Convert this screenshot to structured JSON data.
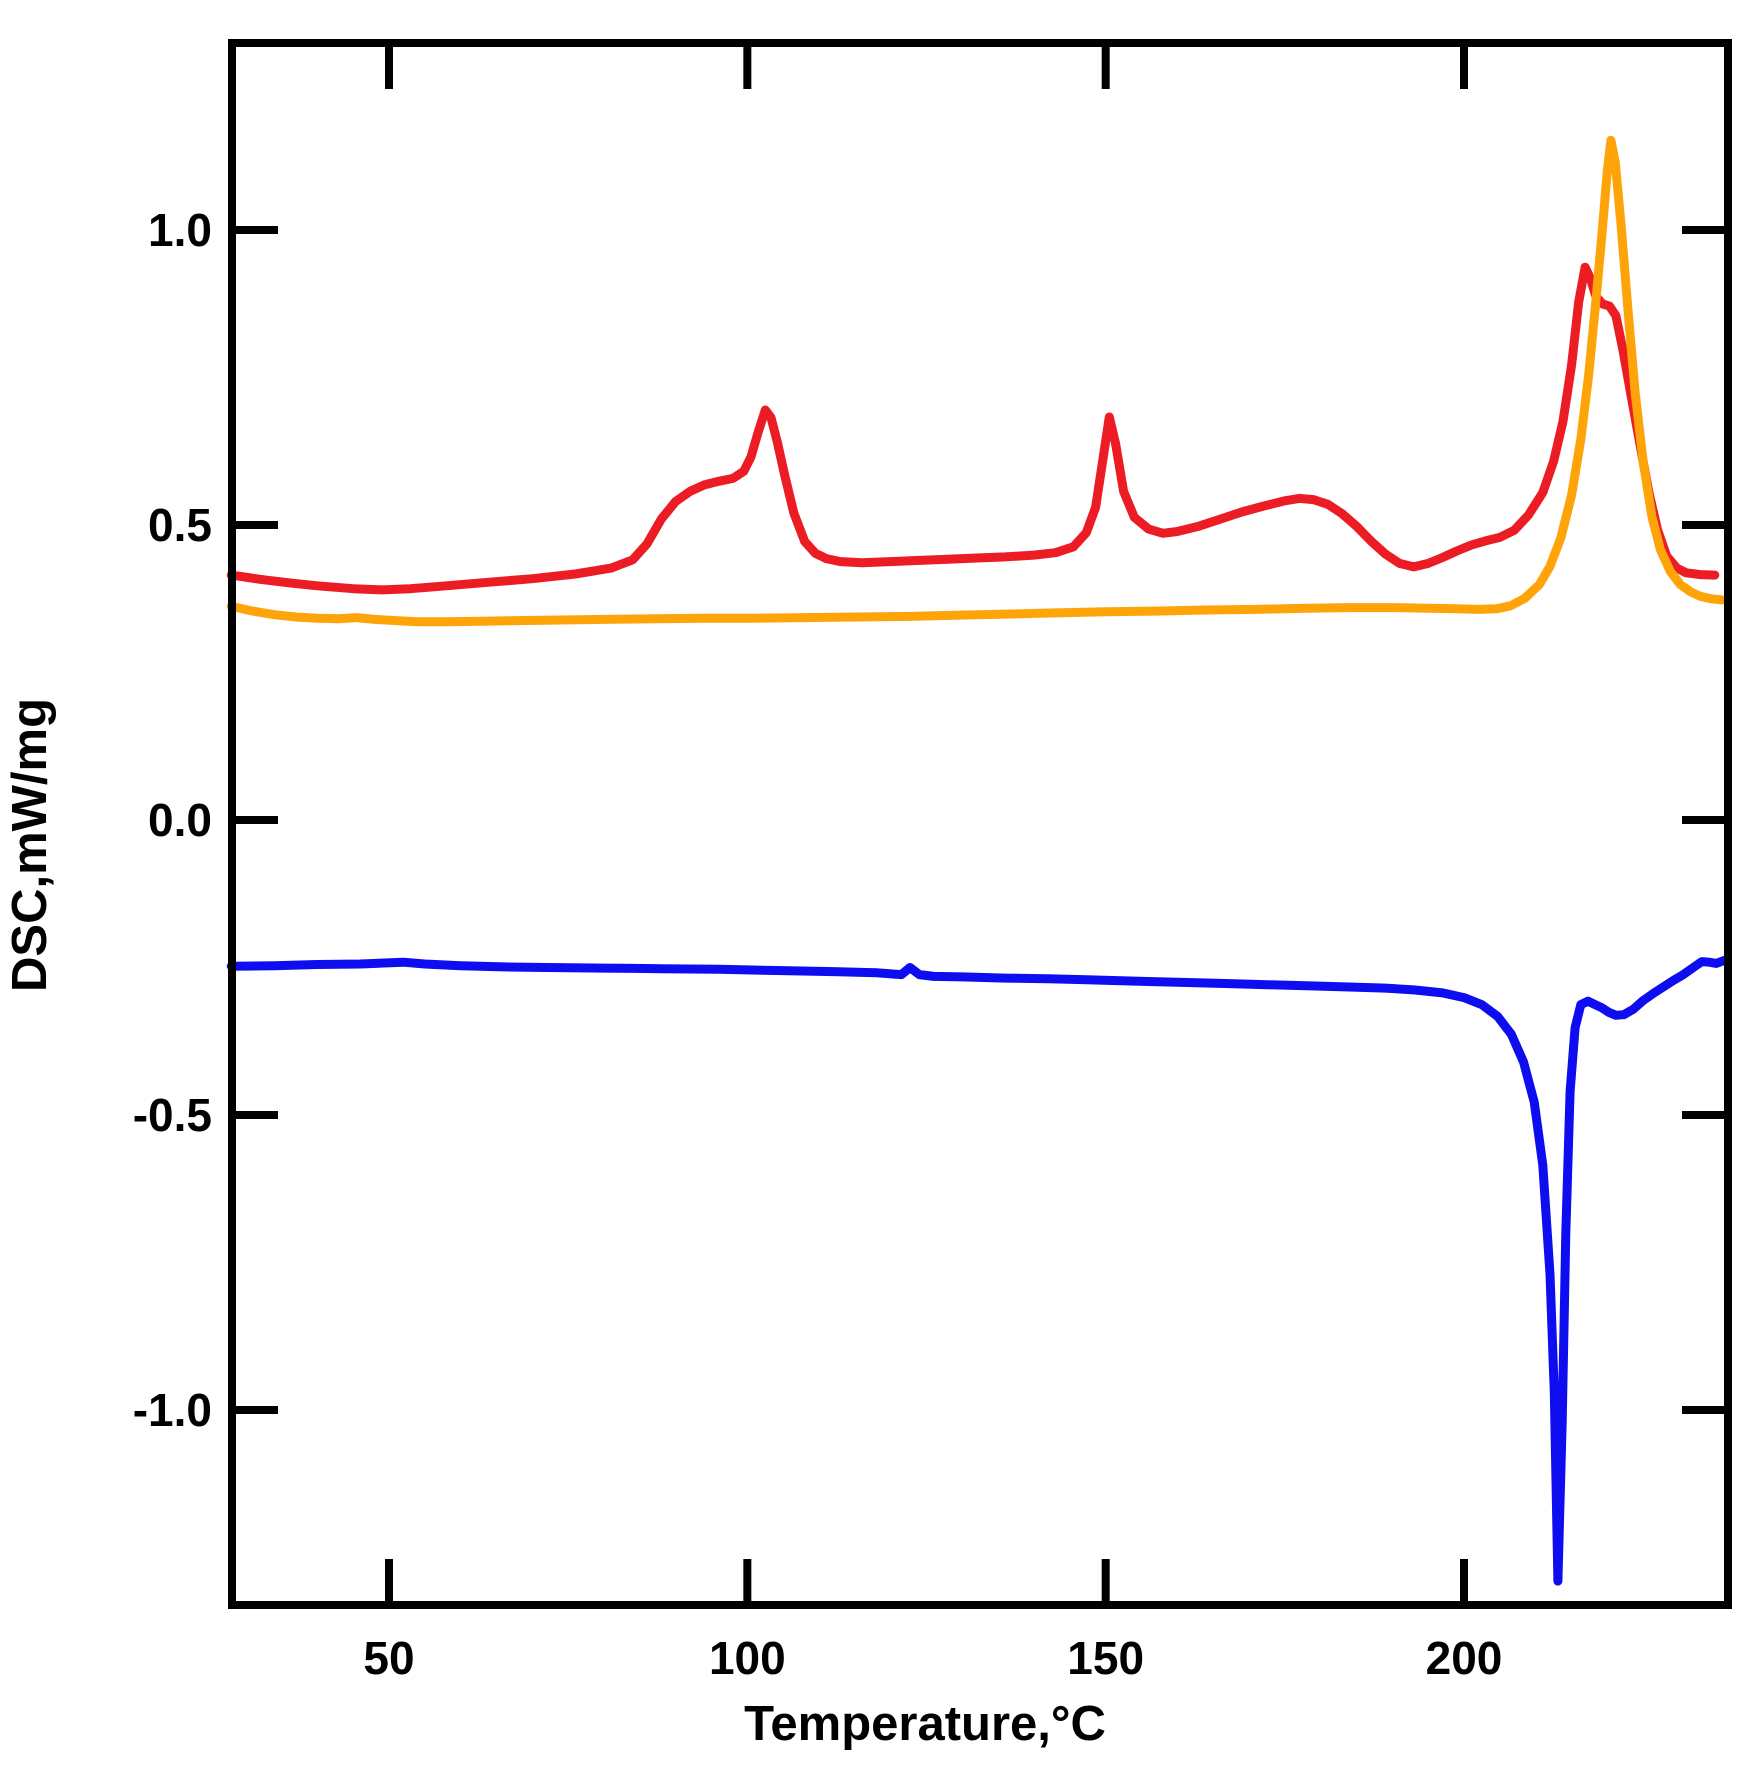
{
  "figure": {
    "background": "#ffffff",
    "axis_color": "#000000"
  },
  "chart_data": {
    "type": "line",
    "title": "",
    "xlabel": "Temperature,°C",
    "ylabel": "DSC,mW/mg",
    "xlim": [
      28,
      237
    ],
    "ylim": [
      -1.33,
      1.32
    ],
    "grid": false,
    "legend": "none",
    "x_ticks": [
      {
        "label": "50",
        "value": 50
      },
      {
        "label": "100",
        "value": 100
      },
      {
        "label": "150",
        "value": 150
      },
      {
        "label": "200",
        "value": 200
      }
    ],
    "y_ticks": [
      {
        "label": "1.0",
        "value": 1.0
      },
      {
        "label": "0.5",
        "value": 0.5
      },
      {
        "label": "0.0",
        "value": 0.0
      },
      {
        "label": "-0.5",
        "value": -0.5
      },
      {
        "label": "-1.0",
        "value": -1.0
      }
    ],
    "series": [
      {
        "name": "dsc-curve-blue",
        "color": "#0d0df0",
        "stroke_width": 9,
        "points": [
          [
            28,
            -0.248
          ],
          [
            34,
            -0.247
          ],
          [
            40,
            -0.245
          ],
          [
            46,
            -0.244
          ],
          [
            52,
            -0.241
          ],
          [
            55,
            -0.244
          ],
          [
            60,
            -0.247
          ],
          [
            66,
            -0.249
          ],
          [
            72,
            -0.25
          ],
          [
            80,
            -0.251
          ],
          [
            88,
            -0.252
          ],
          [
            96,
            -0.253
          ],
          [
            104,
            -0.255
          ],
          [
            112,
            -0.257
          ],
          [
            118,
            -0.259
          ],
          [
            121.5,
            -0.262
          ],
          [
            122.7,
            -0.25
          ],
          [
            124,
            -0.262
          ],
          [
            126,
            -0.265
          ],
          [
            130,
            -0.266
          ],
          [
            136,
            -0.268
          ],
          [
            142,
            -0.269
          ],
          [
            148,
            -0.271
          ],
          [
            154,
            -0.273
          ],
          [
            160,
            -0.275
          ],
          [
            166,
            -0.277
          ],
          [
            172,
            -0.279
          ],
          [
            178,
            -0.281
          ],
          [
            184,
            -0.283
          ],
          [
            189,
            -0.285
          ],
          [
            193,
            -0.288
          ],
          [
            197,
            -0.293
          ],
          [
            200,
            -0.301
          ],
          [
            202.5,
            -0.313
          ],
          [
            204.7,
            -0.333
          ],
          [
            206.6,
            -0.363
          ],
          [
            208.3,
            -0.41
          ],
          [
            209.8,
            -0.478
          ],
          [
            211,
            -0.585
          ],
          [
            212,
            -0.77
          ],
          [
            212.6,
            -0.97
          ],
          [
            213.1,
            -1.29
          ],
          [
            213.7,
            -1.02
          ],
          [
            214.2,
            -0.7
          ],
          [
            214.8,
            -0.46
          ],
          [
            215.5,
            -0.352
          ],
          [
            216.3,
            -0.313
          ],
          [
            217.3,
            -0.307
          ],
          [
            218.3,
            -0.313
          ],
          [
            219.2,
            -0.318
          ],
          [
            220.2,
            -0.326
          ],
          [
            221.2,
            -0.331
          ],
          [
            222.3,
            -0.33
          ],
          [
            223.6,
            -0.321
          ],
          [
            225,
            -0.306
          ],
          [
            226.4,
            -0.294
          ],
          [
            227.8,
            -0.283
          ],
          [
            229.2,
            -0.272
          ],
          [
            230.6,
            -0.262
          ],
          [
            232,
            -0.25
          ],
          [
            233.2,
            -0.24
          ],
          [
            234.2,
            -0.241
          ],
          [
            235.2,
            -0.243
          ],
          [
            236.3,
            -0.238
          ]
        ]
      },
      {
        "name": "dsc-curve-red",
        "color": "#ec1c24",
        "stroke_width": 9,
        "points": [
          [
            28,
            0.415
          ],
          [
            32,
            0.408
          ],
          [
            36,
            0.402
          ],
          [
            40,
            0.397
          ],
          [
            45,
            0.392
          ],
          [
            49,
            0.39
          ],
          [
            53,
            0.392
          ],
          [
            58,
            0.397
          ],
          [
            64,
            0.403
          ],
          [
            70,
            0.409
          ],
          [
            76,
            0.417
          ],
          [
            81,
            0.427
          ],
          [
            84,
            0.441
          ],
          [
            86,
            0.468
          ],
          [
            88,
            0.51
          ],
          [
            90,
            0.54
          ],
          [
            92,
            0.557
          ],
          [
            94,
            0.568
          ],
          [
            96,
            0.574
          ],
          [
            98,
            0.579
          ],
          [
            99.5,
            0.591
          ],
          [
            100.5,
            0.615
          ],
          [
            101.5,
            0.657
          ],
          [
            102.5,
            0.695
          ],
          [
            103.3,
            0.682
          ],
          [
            104.2,
            0.64
          ],
          [
            105.2,
            0.585
          ],
          [
            106.5,
            0.52
          ],
          [
            108,
            0.472
          ],
          [
            109.5,
            0.452
          ],
          [
            111,
            0.443
          ],
          [
            113,
            0.438
          ],
          [
            116,
            0.436
          ],
          [
            120,
            0.438
          ],
          [
            124,
            0.44
          ],
          [
            128,
            0.442
          ],
          [
            132,
            0.444
          ],
          [
            136,
            0.446
          ],
          [
            140,
            0.449
          ],
          [
            143,
            0.453
          ],
          [
            145.5,
            0.463
          ],
          [
            147.3,
            0.487
          ],
          [
            148.6,
            0.53
          ],
          [
            149.6,
            0.61
          ],
          [
            150.5,
            0.683
          ],
          [
            151.4,
            0.637
          ],
          [
            152.5,
            0.557
          ],
          [
            154,
            0.513
          ],
          [
            156,
            0.493
          ],
          [
            158,
            0.486
          ],
          [
            160,
            0.489
          ],
          [
            163,
            0.498
          ],
          [
            166,
            0.51
          ],
          [
            169,
            0.522
          ],
          [
            172,
            0.532
          ],
          [
            175,
            0.541
          ],
          [
            177,
            0.545
          ],
          [
            179,
            0.543
          ],
          [
            181,
            0.535
          ],
          [
            183,
            0.519
          ],
          [
            185,
            0.498
          ],
          [
            187,
            0.473
          ],
          [
            189,
            0.451
          ],
          [
            191,
            0.435
          ],
          [
            193,
            0.429
          ],
          [
            195,
            0.435
          ],
          [
            197,
            0.445
          ],
          [
            199,
            0.456
          ],
          [
            201,
            0.466
          ],
          [
            203,
            0.473
          ],
          [
            205,
            0.479
          ],
          [
            207,
            0.491
          ],
          [
            209,
            0.517
          ],
          [
            211,
            0.555
          ],
          [
            212.5,
            0.608
          ],
          [
            213.8,
            0.675
          ],
          [
            215,
            0.77
          ],
          [
            216,
            0.878
          ],
          [
            216.9,
            0.937
          ],
          [
            217.6,
            0.919
          ],
          [
            218.4,
            0.888
          ],
          [
            219.3,
            0.875
          ],
          [
            220.3,
            0.871
          ],
          [
            221.2,
            0.855
          ],
          [
            222.2,
            0.795
          ],
          [
            223.3,
            0.72
          ],
          [
            224.5,
            0.64
          ],
          [
            225.8,
            0.555
          ],
          [
            227,
            0.492
          ],
          [
            228.3,
            0.447
          ],
          [
            229.7,
            0.427
          ],
          [
            231,
            0.419
          ],
          [
            233,
            0.416
          ],
          [
            235,
            0.415
          ]
        ]
      },
      {
        "name": "dsc-curve-orange",
        "color": "#ffa408",
        "stroke_width": 9,
        "points": [
          [
            28,
            0.362
          ],
          [
            31,
            0.354
          ],
          [
            34,
            0.348
          ],
          [
            37,
            0.344
          ],
          [
            40,
            0.342
          ],
          [
            43,
            0.341
          ],
          [
            45.5,
            0.343
          ],
          [
            48,
            0.34
          ],
          [
            51,
            0.338
          ],
          [
            54,
            0.336
          ],
          [
            58,
            0.336
          ],
          [
            63,
            0.337
          ],
          [
            68,
            0.338
          ],
          [
            74,
            0.339
          ],
          [
            80,
            0.34
          ],
          [
            87,
            0.341
          ],
          [
            94,
            0.342
          ],
          [
            101,
            0.342
          ],
          [
            108,
            0.343
          ],
          [
            115,
            0.344
          ],
          [
            122,
            0.345
          ],
          [
            129,
            0.347
          ],
          [
            136,
            0.349
          ],
          [
            143,
            0.351
          ],
          [
            150,
            0.353
          ],
          [
            157,
            0.354
          ],
          [
            164,
            0.356
          ],
          [
            171,
            0.357
          ],
          [
            178,
            0.359
          ],
          [
            184,
            0.36
          ],
          [
            190,
            0.36
          ],
          [
            195,
            0.359
          ],
          [
            199,
            0.358
          ],
          [
            202,
            0.357
          ],
          [
            204.5,
            0.358
          ],
          [
            206.5,
            0.363
          ],
          [
            208.5,
            0.376
          ],
          [
            210.5,
            0.399
          ],
          [
            212,
            0.43
          ],
          [
            213.5,
            0.478
          ],
          [
            215,
            0.55
          ],
          [
            216.3,
            0.645
          ],
          [
            217.4,
            0.755
          ],
          [
            218.4,
            0.88
          ],
          [
            219.3,
            1.0
          ],
          [
            220,
            1.1
          ],
          [
            220.5,
            1.152
          ],
          [
            221.1,
            1.115
          ],
          [
            221.9,
            1.01
          ],
          [
            222.9,
            0.862
          ],
          [
            223.9,
            0.722
          ],
          [
            225,
            0.607
          ],
          [
            226.2,
            0.515
          ],
          [
            227.4,
            0.458
          ],
          [
            228.8,
            0.421
          ],
          [
            230.2,
            0.399
          ],
          [
            231.6,
            0.387
          ],
          [
            233,
            0.379
          ],
          [
            234.5,
            0.375
          ],
          [
            236,
            0.373
          ]
        ]
      }
    ]
  }
}
